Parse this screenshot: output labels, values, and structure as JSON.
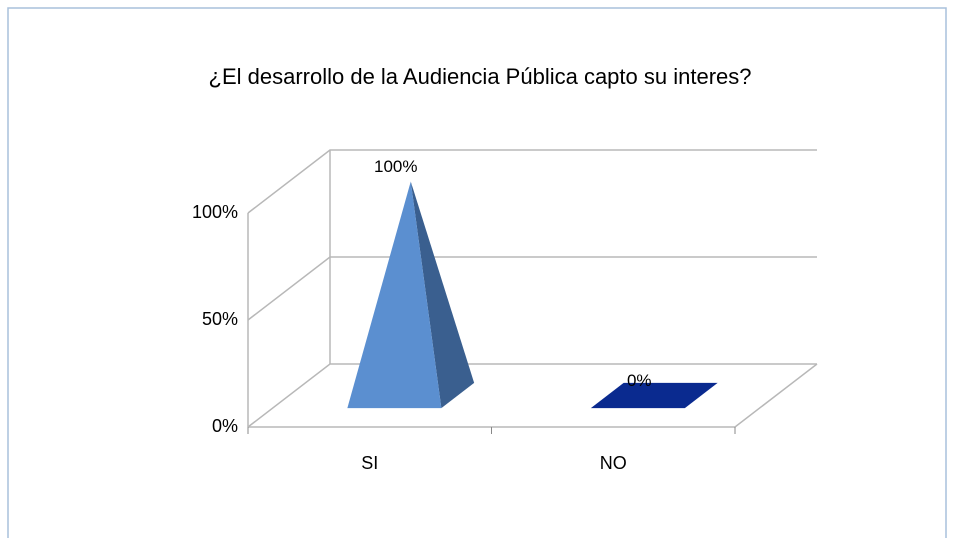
{
  "chart_data": {
    "type": "pyramid",
    "title": "¿El desarrollo de la Audiencia Pública capto su interes?",
    "categories": [
      "SI",
      "NO"
    ],
    "values": [
      100,
      0
    ],
    "value_labels": [
      "100%",
      "0%"
    ],
    "colors": [
      "#5b8fd0",
      "#0a2a8f"
    ],
    "ylim": [
      0,
      100
    ],
    "yticks": [
      {
        "value": 0,
        "label": "0%"
      },
      {
        "value": 50,
        "label": "50%"
      },
      {
        "value": 100,
        "label": "100%"
      }
    ],
    "grid": true
  }
}
